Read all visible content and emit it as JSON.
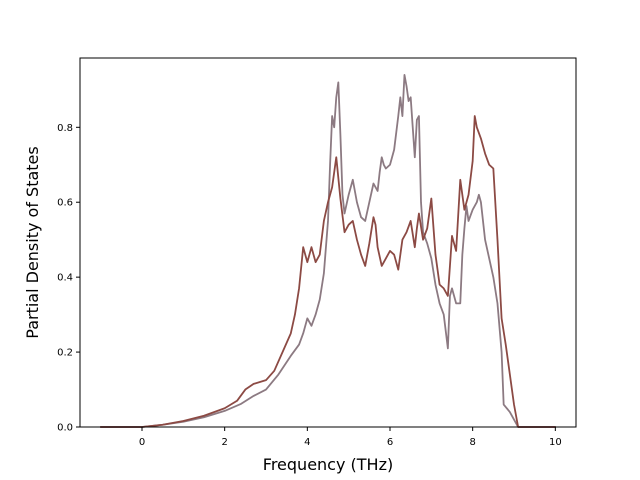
{
  "chart_data": {
    "type": "line",
    "title": "",
    "xlabel": "Frequency (THz)",
    "ylabel": "Partial Density of States",
    "xlim": [
      -1.5,
      10.5
    ],
    "ylim": [
      0.0,
      0.985
    ],
    "xticks": [
      0,
      2,
      4,
      6,
      8,
      10
    ],
    "yticks": [
      0.0,
      0.2,
      0.4,
      0.6,
      0.8
    ],
    "xtick_labels": [
      "0",
      "2",
      "4",
      "6",
      "8",
      "10"
    ],
    "ytick_labels": [
      "0.0",
      "0.2",
      "0.4",
      "0.6",
      "0.8"
    ],
    "grid": false,
    "legend": "none",
    "series": [
      {
        "color": "#8c7a82",
        "points": [
          [
            -1.0,
            0.0
          ],
          [
            0.0,
            0.0
          ],
          [
            0.5,
            0.006
          ],
          [
            1.0,
            0.014
          ],
          [
            1.5,
            0.026
          ],
          [
            2.0,
            0.043
          ],
          [
            2.4,
            0.062
          ],
          [
            2.7,
            0.083
          ],
          [
            3.0,
            0.1
          ],
          [
            3.3,
            0.14
          ],
          [
            3.6,
            0.19
          ],
          [
            3.8,
            0.22
          ],
          [
            3.9,
            0.25
          ],
          [
            4.0,
            0.29
          ],
          [
            4.1,
            0.27
          ],
          [
            4.2,
            0.3
          ],
          [
            4.3,
            0.34
          ],
          [
            4.4,
            0.41
          ],
          [
            4.5,
            0.55
          ],
          [
            4.55,
            0.7
          ],
          [
            4.6,
            0.83
          ],
          [
            4.65,
            0.8
          ],
          [
            4.7,
            0.88
          ],
          [
            4.75,
            0.92
          ],
          [
            4.8,
            0.78
          ],
          [
            4.85,
            0.62
          ],
          [
            4.9,
            0.57
          ],
          [
            5.0,
            0.62
          ],
          [
            5.1,
            0.66
          ],
          [
            5.2,
            0.6
          ],
          [
            5.3,
            0.56
          ],
          [
            5.4,
            0.55
          ],
          [
            5.5,
            0.6
          ],
          [
            5.6,
            0.65
          ],
          [
            5.7,
            0.63
          ],
          [
            5.75,
            0.68
          ],
          [
            5.8,
            0.72
          ],
          [
            5.85,
            0.7
          ],
          [
            5.9,
            0.69
          ],
          [
            6.0,
            0.7
          ],
          [
            6.1,
            0.74
          ],
          [
            6.2,
            0.83
          ],
          [
            6.25,
            0.88
          ],
          [
            6.3,
            0.83
          ],
          [
            6.35,
            0.94
          ],
          [
            6.4,
            0.91
          ],
          [
            6.45,
            0.87
          ],
          [
            6.5,
            0.88
          ],
          [
            6.6,
            0.72
          ],
          [
            6.65,
            0.82
          ],
          [
            6.7,
            0.83
          ],
          [
            6.75,
            0.6
          ],
          [
            6.8,
            0.52
          ],
          [
            6.9,
            0.49
          ],
          [
            7.0,
            0.45
          ],
          [
            7.1,
            0.38
          ],
          [
            7.2,
            0.33
          ],
          [
            7.3,
            0.3
          ],
          [
            7.4,
            0.21
          ],
          [
            7.45,
            0.35
          ],
          [
            7.5,
            0.37
          ],
          [
            7.6,
            0.33
          ],
          [
            7.7,
            0.33
          ],
          [
            7.75,
            0.46
          ],
          [
            7.8,
            0.53
          ],
          [
            7.85,
            0.59
          ],
          [
            7.9,
            0.55
          ],
          [
            8.0,
            0.58
          ],
          [
            8.1,
            0.6
          ],
          [
            8.15,
            0.62
          ],
          [
            8.2,
            0.6
          ],
          [
            8.3,
            0.5
          ],
          [
            8.4,
            0.45
          ],
          [
            8.5,
            0.4
          ],
          [
            8.6,
            0.33
          ],
          [
            8.7,
            0.2
          ],
          [
            8.75,
            0.06
          ],
          [
            8.9,
            0.04
          ],
          [
            9.0,
            0.02
          ],
          [
            9.1,
            0.0
          ],
          [
            10.0,
            0.0
          ]
        ]
      },
      {
        "color": "#8c4a44",
        "points": [
          [
            -1.0,
            0.0
          ],
          [
            0.0,
            0.0
          ],
          [
            0.5,
            0.006
          ],
          [
            1.0,
            0.016
          ],
          [
            1.5,
            0.03
          ],
          [
            2.0,
            0.05
          ],
          [
            2.3,
            0.07
          ],
          [
            2.5,
            0.1
          ],
          [
            2.7,
            0.115
          ],
          [
            3.0,
            0.125
          ],
          [
            3.2,
            0.15
          ],
          [
            3.4,
            0.2
          ],
          [
            3.6,
            0.25
          ],
          [
            3.7,
            0.3
          ],
          [
            3.8,
            0.37
          ],
          [
            3.9,
            0.48
          ],
          [
            4.0,
            0.44
          ],
          [
            4.1,
            0.48
          ],
          [
            4.2,
            0.44
          ],
          [
            4.3,
            0.46
          ],
          [
            4.4,
            0.55
          ],
          [
            4.5,
            0.6
          ],
          [
            4.6,
            0.64
          ],
          [
            4.7,
            0.72
          ],
          [
            4.8,
            0.61
          ],
          [
            4.9,
            0.52
          ],
          [
            5.0,
            0.54
          ],
          [
            5.1,
            0.55
          ],
          [
            5.2,
            0.5
          ],
          [
            5.3,
            0.46
          ],
          [
            5.4,
            0.43
          ],
          [
            5.5,
            0.49
          ],
          [
            5.6,
            0.56
          ],
          [
            5.65,
            0.54
          ],
          [
            5.7,
            0.48
          ],
          [
            5.8,
            0.43
          ],
          [
            5.9,
            0.45
          ],
          [
            6.0,
            0.47
          ],
          [
            6.1,
            0.46
          ],
          [
            6.2,
            0.42
          ],
          [
            6.3,
            0.5
          ],
          [
            6.4,
            0.52
          ],
          [
            6.5,
            0.55
          ],
          [
            6.6,
            0.48
          ],
          [
            6.65,
            0.53
          ],
          [
            6.7,
            0.57
          ],
          [
            6.8,
            0.5
          ],
          [
            6.9,
            0.53
          ],
          [
            7.0,
            0.61
          ],
          [
            7.1,
            0.46
          ],
          [
            7.2,
            0.38
          ],
          [
            7.3,
            0.37
          ],
          [
            7.4,
            0.35
          ],
          [
            7.5,
            0.51
          ],
          [
            7.6,
            0.47
          ],
          [
            7.7,
            0.66
          ],
          [
            7.8,
            0.58
          ],
          [
            7.9,
            0.62
          ],
          [
            8.0,
            0.71
          ],
          [
            8.05,
            0.83
          ],
          [
            8.1,
            0.8
          ],
          [
            8.2,
            0.77
          ],
          [
            8.3,
            0.73
          ],
          [
            8.4,
            0.7
          ],
          [
            8.5,
            0.69
          ],
          [
            8.6,
            0.5
          ],
          [
            8.7,
            0.29
          ],
          [
            8.8,
            0.22
          ],
          [
            8.9,
            0.14
          ],
          [
            9.0,
            0.06
          ],
          [
            9.1,
            0.0
          ],
          [
            10.0,
            0.0
          ]
        ]
      }
    ]
  }
}
